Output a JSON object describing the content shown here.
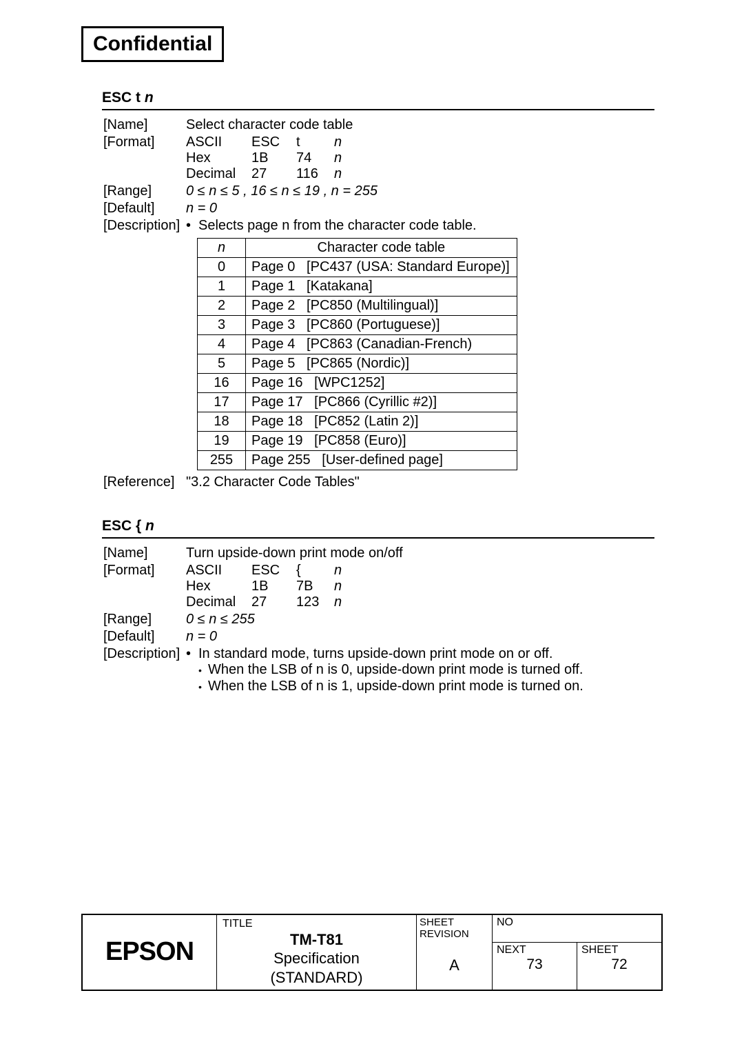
{
  "header": {
    "confidential": "Confidential"
  },
  "section1": {
    "title_prefix": "ESC t ",
    "title_var": "n",
    "name_label": "[Name]",
    "name_value": "Select character code table",
    "format_label": "[Format]",
    "format": {
      "rows": [
        {
          "enc": "ASCII",
          "c1": "ESC",
          "c2": "t",
          "c3": "n"
        },
        {
          "enc": "Hex",
          "c1": "1B",
          "c2": "74",
          "c3": "n"
        },
        {
          "enc": "Decimal",
          "c1": "27",
          "c2": "116",
          "c3": "n"
        }
      ]
    },
    "range_label": "[Range]",
    "range_value": "0 ≤ n ≤ 5 , 16 ≤ n ≤ 19 , n = 255",
    "default_label": "[Default]",
    "default_value": "n = 0",
    "description_label": "[Description]",
    "description_bullet": "Selects page n from the character code table.",
    "table": {
      "header_n": "n",
      "header_ct": "Character code table",
      "rows": [
        {
          "n": "0",
          "ct": "Page 0   [PC437 (USA: Standard Europe)]"
        },
        {
          "n": "1",
          "ct": "Page 1   [Katakana]"
        },
        {
          "n": "2",
          "ct": "Page 2   [PC850 (Multilingual)]"
        },
        {
          "n": "3",
          "ct": "Page 3   [PC860 (Portuguese)]"
        },
        {
          "n": "4",
          "ct": "Page 4   [PC863 (Canadian-French)"
        },
        {
          "n": "5",
          "ct": "Page 5   [PC865 (Nordic)]"
        },
        {
          "n": "16",
          "ct": "Page 16   [WPC1252]"
        },
        {
          "n": "17",
          "ct": "Page 17   [PC866 (Cyrillic #2)]"
        },
        {
          "n": "18",
          "ct": "Page 18   [PC852 (Latin 2)]"
        },
        {
          "n": "19",
          "ct": "Page 19   [PC858 (Euro)]"
        },
        {
          "n": "255",
          "ct": "Page 255   [User-defined page]"
        }
      ]
    },
    "reference_label": "[Reference]",
    "reference_value": "\"3.2 Character Code Tables\""
  },
  "section2": {
    "title_prefix": "ESC { ",
    "title_var": "n",
    "name_label": "[Name]",
    "name_value": "Turn upside-down print mode on/off",
    "format_label": "[Format]",
    "format": {
      "rows": [
        {
          "enc": "ASCII",
          "c1": "ESC",
          "c2": "{",
          "c3": "n"
        },
        {
          "enc": "Hex",
          "c1": "1B",
          "c2": "7B",
          "c3": "n"
        },
        {
          "enc": "Decimal",
          "c1": "27",
          "c2": "123",
          "c3": "n"
        }
      ]
    },
    "range_label": "[Range]",
    "range_value": "0 ≤ n ≤ 255",
    "default_label": "[Default]",
    "default_value": "n = 0",
    "description_label": "[Description]",
    "description_bullet": "In standard mode, turns upside-down print mode on or off.",
    "sub1": "When the LSB of n is 0, upside-down print mode is turned off.",
    "sub2": "When the LSB of n is 1, upside-down print mode is turned on."
  },
  "footer": {
    "logo": "EPSON",
    "title_label": "TITLE",
    "title_l1": "TM-T81",
    "title_l2": "Specification",
    "title_l3": "(STANDARD)",
    "sheet_rev_l1": "SHEET",
    "sheet_rev_l2": "REVISION",
    "sheet_rev_val": "A",
    "no_label": "NO",
    "next_label": "NEXT",
    "next_val": "73",
    "sheet_label": "SHEET",
    "sheet_val": "72"
  }
}
